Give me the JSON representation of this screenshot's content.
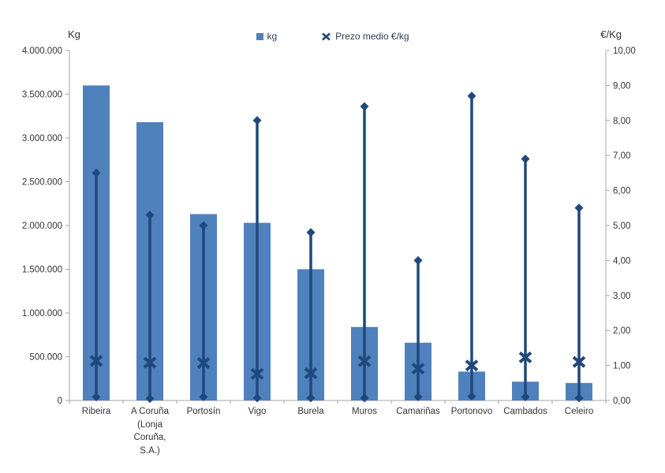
{
  "chart_data": {
    "type": "bar",
    "title": "",
    "categories": [
      "Ribeira",
      "A Coruña (Lonja Coruña, S.A.)",
      "Portosín",
      "Vigo",
      "Burela",
      "Muros",
      "Camariñas",
      "Portonovo",
      "Cambados",
      "Celeiro"
    ],
    "series": [
      {
        "name": "kg",
        "type": "bar",
        "axis": "left",
        "color": "#4F81BD",
        "values": [
          3600000,
          3180000,
          2130000,
          2030000,
          1500000,
          840000,
          660000,
          330000,
          215000,
          200000
        ]
      },
      {
        "name": "Prezo medio €/kg",
        "type": "hilo-x-marker",
        "axis": "right",
        "color": "#1F497D",
        "high": [
          6.5,
          5.3,
          5.0,
          8.0,
          4.8,
          8.4,
          4.0,
          8.7,
          6.9,
          5.5
        ],
        "low": [
          0.1,
          0.05,
          0.1,
          0.07,
          0.07,
          0.07,
          0.1,
          0.12,
          0.1,
          0.07
        ],
        "mean": [
          1.13,
          1.08,
          1.07,
          0.76,
          0.78,
          1.12,
          0.91,
          1.0,
          1.23,
          1.1
        ]
      }
    ],
    "axes": {
      "left": {
        "title": "Kg",
        "min": 0,
        "max": 4000000,
        "tick_labels": [
          "0",
          "500.000",
          "1.000.000",
          "1.500.000",
          "2.000.000",
          "2.500.000",
          "3.000.000",
          "3.500.000",
          "4.000.000"
        ]
      },
      "right": {
        "title": "€/Kg",
        "min": 0,
        "max": 10,
        "tick_labels": [
          "0,00",
          "1,00",
          "2,00",
          "3,00",
          "4,00",
          "5,00",
          "6,00",
          "7,00",
          "8,00",
          "9,00",
          "10,00"
        ]
      }
    },
    "legend": {
      "position": "top",
      "items": [
        {
          "label": "kg",
          "marker": "square"
        },
        {
          "label": "Prezo medio €/kg",
          "marker": "x"
        }
      ]
    },
    "grid": "off"
  },
  "colors": {
    "bar": "#4F81BD",
    "line_series": "#1F497D",
    "axis_line": "#A6A6A6",
    "text": "#333333"
  }
}
